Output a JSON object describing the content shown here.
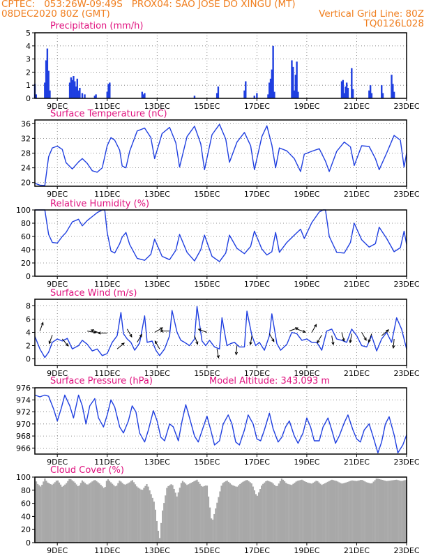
{
  "header": {
    "line1": "CPTEC:   053:26W-09:49S   PROX04: SAO JOSE DO XINGU (MT)",
    "line2_left": "08DEC2020 80Z (GMT)",
    "line2_right": "Vertical Grid Line: 80Z",
    "line3_right": "TQ0126L028"
  },
  "colors": {
    "header": "#f07e1e",
    "title": "#e0117e",
    "series": "#1f3fe0",
    "bar": "#1f3fe0",
    "cloud": "#a8a8a8",
    "grid": "#6e6e6e",
    "axis": "#000000"
  },
  "x_axis": {
    "ticks": [
      {
        "day": 9,
        "label": "9DEC"
      },
      {
        "day": 11,
        "label": "11DEC"
      },
      {
        "day": 13,
        "label": "13DEC"
      },
      {
        "day": 15,
        "label": "15DEC"
      },
      {
        "day": 17,
        "label": "17DEC"
      },
      {
        "day": 19,
        "label": "19DEC"
      },
      {
        "day": 21,
        "label": "21DEC"
      },
      {
        "day": 23,
        "label": "23DEC"
      }
    ]
  },
  "chart_data": [
    {
      "id": "precip",
      "type": "bar",
      "title": "Precipitation (mm/h)",
      "ylim": [
        0,
        5
      ],
      "yticks": [
        0,
        1,
        2,
        3,
        4,
        5
      ],
      "xlim": [
        8.1,
        23
      ],
      "grid": true,
      "x_unit": "day of December 2020",
      "x": [
        8.1,
        8.15,
        8.5,
        8.55,
        8.6,
        8.65,
        8.7,
        9.5,
        9.55,
        9.6,
        9.65,
        9.7,
        9.75,
        9.8,
        9.85,
        9.9,
        10.0,
        10.1,
        10.5,
        10.55,
        11.0,
        11.05,
        11.1,
        12.4,
        12.45,
        12.5,
        14.5,
        15.4,
        15.45,
        16.5,
        16.55,
        16.9,
        17.0,
        17.45,
        17.5,
        17.55,
        17.6,
        17.65,
        17.7,
        18.4,
        18.45,
        18.5,
        18.55,
        18.6,
        18.65,
        20.4,
        20.45,
        20.5,
        20.55,
        20.6,
        20.65,
        20.8,
        20.85,
        21.5,
        21.55,
        21.6,
        22.0,
        22.05,
        22.4,
        22.45,
        22.5
      ],
      "values": [
        1.1,
        0.3,
        1.2,
        2.9,
        3.8,
        2.1,
        0.6,
        1.2,
        1.6,
        1.4,
        1.7,
        1.3,
        0.9,
        1.5,
        0.6,
        0.8,
        0.4,
        0.3,
        0.2,
        0.3,
        0.5,
        1.1,
        1.2,
        0.5,
        0.3,
        0.4,
        0.2,
        0.4,
        0.9,
        0.6,
        1.3,
        0.2,
        0.4,
        0.3,
        1.2,
        1.5,
        2.2,
        4.0,
        0.5,
        2.9,
        2.4,
        0.6,
        1.8,
        2.8,
        0.5,
        1.3,
        1.4,
        0.4,
        0.9,
        1.2,
        0.8,
        2.3,
        0.7,
        0.6,
        1.0,
        0.4,
        1.0,
        0.4,
        1.8,
        1.1,
        0.5
      ]
    },
    {
      "id": "temp",
      "type": "line",
      "title": "Surface Temperature (nC)",
      "ylim": [
        19,
        37
      ],
      "yticks": [
        20,
        24,
        28,
        32,
        36
      ],
      "xlim": [
        8.1,
        23
      ],
      "grid": true,
      "x_unit": "day of December 2020",
      "x": [
        8.1,
        8.3,
        8.5,
        8.65,
        8.8,
        9.0,
        9.2,
        9.35,
        9.6,
        9.85,
        10.0,
        10.2,
        10.4,
        10.6,
        10.8,
        11.0,
        11.15,
        11.3,
        11.5,
        11.6,
        11.75,
        11.9,
        12.2,
        12.5,
        12.75,
        12.9,
        13.2,
        13.5,
        13.75,
        13.9,
        14.2,
        14.5,
        14.75,
        14.9,
        15.2,
        15.5,
        15.75,
        15.9,
        16.2,
        16.5,
        16.75,
        16.9,
        17.2,
        17.4,
        17.6,
        17.75,
        17.9,
        18.2,
        18.5,
        18.75,
        18.9,
        19.2,
        19.5,
        19.75,
        19.9,
        20.2,
        20.5,
        20.75,
        20.9,
        21.2,
        21.5,
        21.75,
        21.9,
        22.2,
        22.5,
        22.75,
        22.9,
        23.0
      ],
      "values": [
        19.8,
        19.3,
        19.2,
        27.0,
        29.4,
        29.9,
        29.0,
        25.4,
        23.7,
        25.6,
        26.5,
        25.2,
        23.2,
        22.8,
        24.0,
        30.0,
        32.2,
        31.5,
        28.8,
        24.5,
        24.0,
        28.5,
        34.0,
        34.8,
        32.2,
        26.5,
        33.3,
        35.0,
        30.8,
        24.2,
        32.5,
        35.3,
        30.5,
        23.5,
        33.0,
        35.8,
        31.8,
        25.5,
        31.0,
        33.6,
        30.0,
        23.5,
        32.5,
        35.4,
        30.2,
        24.0,
        29.4,
        28.6,
        26.5,
        23.0,
        27.7,
        28.5,
        29.2,
        25.8,
        23.0,
        28.5,
        31.0,
        29.7,
        24.6,
        30.0,
        29.8,
        26.5,
        23.5,
        28.0,
        32.8,
        31.5,
        24.2,
        28.0
      ]
    },
    {
      "id": "rh",
      "type": "line",
      "title": "Relative Humidity (%)",
      "ylim": [
        0,
        100
      ],
      "yticks": [
        0,
        20,
        40,
        60,
        80,
        100
      ],
      "xlim": [
        8.1,
        23
      ],
      "grid": true,
      "x_unit": "day of December 2020",
      "x": [
        8.1,
        8.4,
        8.5,
        8.65,
        8.8,
        9.0,
        9.2,
        9.35,
        9.6,
        9.85,
        10.0,
        10.2,
        10.4,
        10.6,
        10.8,
        10.9,
        11.0,
        11.15,
        11.3,
        11.5,
        11.6,
        11.75,
        11.9,
        12.2,
        12.5,
        12.75,
        12.9,
        13.2,
        13.5,
        13.75,
        13.9,
        14.2,
        14.5,
        14.75,
        14.9,
        15.2,
        15.5,
        15.75,
        15.9,
        16.2,
        16.5,
        16.75,
        16.9,
        17.2,
        17.4,
        17.6,
        17.75,
        17.9,
        18.2,
        18.5,
        18.75,
        18.9,
        19.2,
        19.5,
        19.65,
        19.75,
        19.9,
        20.2,
        20.5,
        20.75,
        20.9,
        21.2,
        21.5,
        21.75,
        21.9,
        22.2,
        22.5,
        22.75,
        22.9,
        23.0
      ],
      "values": [
        100,
        100,
        100,
        63,
        51,
        50,
        60,
        66,
        82,
        86,
        76,
        84,
        90,
        96,
        100,
        100,
        66,
        38,
        35,
        49,
        59,
        66,
        48,
        27,
        24,
        33,
        56,
        30,
        25,
        39,
        63,
        36,
        23,
        40,
        62,
        30,
        22,
        35,
        62,
        42,
        34,
        45,
        68,
        41,
        32,
        37,
        66,
        36,
        51,
        62,
        71,
        57,
        81,
        97,
        100,
        100,
        60,
        36,
        35,
        51,
        80,
        55,
        44,
        49,
        74,
        57,
        37,
        43,
        68,
        48
      ]
    },
    {
      "id": "wind",
      "type": "line",
      "title": "Surface Wind (m/s)",
      "ylim": [
        -1,
        9
      ],
      "yticks": [
        0,
        2,
        4,
        6,
        8
      ],
      "xlim": [
        8.1,
        23
      ],
      "grid": true,
      "x_unit": "day of December 2020",
      "x": [
        8.1,
        8.3,
        8.5,
        8.65,
        8.8,
        9.0,
        9.2,
        9.4,
        9.6,
        9.85,
        10.0,
        10.2,
        10.4,
        10.6,
        10.8,
        11.0,
        11.2,
        11.4,
        11.55,
        11.65,
        11.8,
        11.95,
        12.1,
        12.3,
        12.5,
        12.6,
        12.8,
        12.95,
        13.1,
        13.3,
        13.5,
        13.6,
        13.8,
        13.95,
        14.1,
        14.3,
        14.5,
        14.6,
        14.8,
        14.95,
        15.1,
        15.3,
        15.5,
        15.6,
        15.8,
        15.95,
        16.1,
        16.3,
        16.5,
        16.6,
        16.8,
        16.95,
        17.1,
        17.3,
        17.5,
        17.6,
        17.8,
        17.95,
        18.2,
        18.4,
        18.6,
        18.8,
        19.0,
        19.2,
        19.4,
        19.6,
        19.8,
        20.0,
        20.2,
        20.4,
        20.6,
        20.8,
        21.0,
        21.2,
        21.4,
        21.6,
        21.8,
        22.0,
        22.2,
        22.4,
        22.6,
        22.8,
        23.0
      ],
      "values": [
        3.4,
        1.5,
        0.2,
        1.0,
        2.5,
        3.0,
        2.7,
        3.1,
        1.5,
        2.0,
        2.8,
        2.2,
        1.2,
        1.5,
        0.5,
        0.8,
        2.5,
        3.5,
        7.0,
        3.8,
        3.0,
        2.5,
        1.3,
        2.4,
        6.5,
        2.5,
        2.7,
        1.3,
        0.5,
        1.5,
        3.5,
        7.3,
        4.0,
        2.8,
        2.5,
        2.0,
        3.0,
        7.9,
        2.7,
        2.0,
        2.8,
        1.8,
        1.5,
        6.2,
        2.0,
        2.3,
        2.5,
        1.8,
        1.8,
        7.2,
        3.5,
        2.0,
        2.5,
        1.3,
        3.5,
        6.8,
        2.3,
        1.3,
        2.2,
        4.0,
        3.8,
        2.8,
        3.0,
        2.5,
        2.5,
        1.3,
        4.2,
        4.5,
        3.0,
        2.8,
        2.5,
        4.5,
        3.5,
        2.0,
        1.8,
        3.5,
        1.2,
        3.0,
        4.0,
        2.5,
        6.2,
        4.5,
        1.5
      ],
      "vectors": [
        {
          "x": 8.3,
          "y": 4.2,
          "ang": -70
        },
        {
          "x": 8.8,
          "y": 3.6,
          "ang": 110
        },
        {
          "x": 9.2,
          "y": 3.0,
          "ang": 50
        },
        {
          "x": 10.2,
          "y": 4.2,
          "ang": 10
        },
        {
          "x": 10.7,
          "y": 3.9,
          "ang": 200
        },
        {
          "x": 11.0,
          "y": 3.9,
          "ang": 180
        },
        {
          "x": 11.4,
          "y": 1.5,
          "ang": -40
        },
        {
          "x": 11.8,
          "y": 4.5,
          "ang": 60
        },
        {
          "x": 12.2,
          "y": 2.5,
          "ang": -60
        },
        {
          "x": 12.9,
          "y": 4.0,
          "ang": -30
        },
        {
          "x": 13.1,
          "y": 1.5,
          "ang": -120
        },
        {
          "x": 13.5,
          "y": 4.2,
          "ang": 180
        },
        {
          "x": 14.5,
          "y": 3.5,
          "ang": 70
        },
        {
          "x": 15.0,
          "y": 4.0,
          "ang": 200
        },
        {
          "x": 15.4,
          "y": 1.5,
          "ang": 80
        },
        {
          "x": 16.2,
          "y": 2.0,
          "ang": 95
        },
        {
          "x": 16.8,
          "y": 3.5,
          "ang": 100
        },
        {
          "x": 17.5,
          "y": 3.8,
          "ang": 60
        },
        {
          "x": 18.3,
          "y": 4.2,
          "ang": -20
        },
        {
          "x": 18.6,
          "y": 4.5,
          "ang": 20
        },
        {
          "x": 19.2,
          "y": 4.0,
          "ang": -60
        },
        {
          "x": 19.6,
          "y": 3.6,
          "ang": 120
        },
        {
          "x": 20.0,
          "y": 3.5,
          "ang": 80
        },
        {
          "x": 20.4,
          "y": 4.0,
          "ang": 75
        },
        {
          "x": 20.8,
          "y": 3.8,
          "ang": 100
        },
        {
          "x": 21.2,
          "y": 4.0,
          "ang": 60
        },
        {
          "x": 21.6,
          "y": 3.8,
          "ang": 110
        },
        {
          "x": 22.0,
          "y": 3.5,
          "ang": -40
        },
        {
          "x": 22.5,
          "y": 3.0,
          "ang": 95
        }
      ]
    },
    {
      "id": "pres",
      "type": "line",
      "title": "Surface Pressure (hPa)",
      "subtitle": "Model Altitude: 343.093 m",
      "ylim": [
        965,
        976
      ],
      "yticks": [
        966,
        968,
        970,
        972,
        974,
        976
      ],
      "xlim": [
        8.1,
        23
      ],
      "grid": true,
      "x_unit": "day of December 2020",
      "x": [
        8.1,
        8.3,
        8.5,
        8.65,
        8.85,
        9.0,
        9.15,
        9.3,
        9.5,
        9.65,
        9.85,
        10.0,
        10.15,
        10.3,
        10.5,
        10.65,
        10.85,
        11.0,
        11.15,
        11.3,
        11.5,
        11.65,
        11.85,
        12.0,
        12.15,
        12.3,
        12.5,
        12.65,
        12.85,
        13.0,
        13.15,
        13.3,
        13.5,
        13.65,
        13.85,
        14.0,
        14.15,
        14.3,
        14.5,
        14.65,
        14.85,
        15.0,
        15.15,
        15.3,
        15.5,
        15.65,
        15.85,
        16.0,
        16.15,
        16.3,
        16.5,
        16.65,
        16.85,
        17.0,
        17.15,
        17.3,
        17.5,
        17.65,
        17.85,
        18.0,
        18.15,
        18.3,
        18.5,
        18.65,
        18.85,
        19.0,
        19.15,
        19.3,
        19.5,
        19.65,
        19.85,
        20.0,
        20.15,
        20.3,
        20.5,
        20.65,
        20.85,
        21.0,
        21.15,
        21.3,
        21.5,
        21.65,
        21.85,
        22.0,
        22.15,
        22.3,
        22.5,
        22.65,
        22.85,
        23.0
      ],
      "values": [
        974.8,
        974.5,
        974.8,
        974.6,
        972.5,
        970.5,
        972.5,
        974.8,
        973.0,
        971.0,
        974.8,
        973.0,
        970.0,
        973.0,
        974.2,
        971.0,
        969.5,
        971.5,
        974.0,
        972.8,
        969.5,
        968.5,
        970.5,
        973.0,
        972.0,
        968.5,
        967.0,
        969.0,
        972.2,
        970.5,
        967.8,
        967.2,
        970.0,
        969.5,
        967.2,
        970.5,
        973.2,
        971.0,
        968.0,
        967.0,
        969.5,
        971.3,
        969.0,
        966.5,
        967.2,
        970.0,
        971.5,
        970.0,
        967.0,
        966.5,
        969.0,
        971.5,
        970.0,
        967.5,
        967.2,
        969.0,
        971.8,
        969.2,
        967.0,
        967.8,
        969.5,
        970.5,
        968.0,
        966.8,
        968.5,
        971.0,
        969.5,
        967.2,
        967.2,
        969.5,
        971.0,
        969.0,
        966.8,
        968.0,
        970.2,
        971.5,
        969.0,
        967.5,
        967.0,
        969.0,
        970.0,
        968.0,
        965.2,
        967.0,
        970.0,
        971.2,
        968.2,
        965.2,
        966.5,
        968.2
      ]
    },
    {
      "id": "cloud",
      "type": "area",
      "title": "Cloud Cover (%)",
      "ylim": [
        0,
        100
      ],
      "yticks": [
        0,
        20,
        40,
        60,
        80,
        100
      ],
      "xlim": [
        8.1,
        23
      ],
      "grid": false,
      "x_unit": "day of December 2020",
      "x": [
        8.1,
        8.2,
        8.35,
        8.5,
        8.6,
        8.8,
        9.0,
        9.2,
        9.35,
        9.5,
        9.7,
        9.85,
        10.0,
        10.2,
        10.35,
        10.5,
        10.7,
        10.9,
        11.0,
        11.2,
        11.35,
        11.5,
        11.7,
        11.9,
        12.0,
        12.2,
        12.4,
        12.6,
        12.8,
        12.9,
        13.0,
        13.1,
        13.2,
        13.4,
        13.6,
        13.8,
        14.0,
        14.2,
        14.4,
        14.6,
        14.8,
        15.0,
        15.2,
        15.4,
        15.6,
        15.8,
        16.0,
        16.2,
        16.4,
        16.6,
        16.8,
        17.0,
        17.2,
        17.4,
        17.6,
        17.8,
        18.0,
        18.2,
        18.4,
        18.6,
        18.8,
        19.0,
        19.2,
        19.4,
        19.6,
        19.8,
        20.0,
        20.2,
        20.4,
        20.6,
        20.8,
        21.0,
        21.2,
        21.4,
        21.6,
        21.8,
        22.0,
        22.2,
        22.4,
        22.6,
        22.8,
        23.0
      ],
      "values": [
        98,
        90,
        85,
        98,
        92,
        88,
        96,
        85,
        90,
        98,
        92,
        85,
        95,
        88,
        92,
        96,
        90,
        82,
        98,
        90,
        85,
        95,
        88,
        92,
        96,
        85,
        80,
        90,
        70,
        60,
        30,
        5,
        45,
        85,
        90,
        70,
        95,
        88,
        92,
        96,
        85,
        88,
        30,
        60,
        90,
        95,
        88,
        85,
        92,
        96,
        90,
        70,
        88,
        95,
        92,
        85,
        98,
        90,
        88,
        94,
        96,
        92,
        90,
        95,
        88,
        92,
        96,
        94,
        90,
        92,
        95,
        94,
        96,
        92,
        90,
        98,
        96,
        94,
        95,
        96,
        94,
        96
      ]
    }
  ]
}
